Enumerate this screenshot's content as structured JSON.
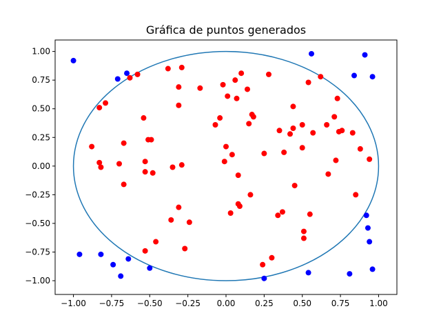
{
  "chart_data": {
    "type": "scatter",
    "title": "Gráfica de puntos generados",
    "xlabel": "",
    "ylabel": "",
    "xlim": [
      -1.12,
      1.12
    ],
    "ylim": [
      -1.12,
      1.1
    ],
    "grid": false,
    "x_ticks": [
      -1.0,
      -0.75,
      -0.5,
      -0.25,
      0.0,
      0.25,
      0.5,
      0.75,
      1.0
    ],
    "x_tick_labels": [
      "−1.00",
      "−0.75",
      "−0.50",
      "−0.25",
      "0.00",
      "0.25",
      "0.50",
      "0.75",
      "1.00"
    ],
    "y_ticks": [
      -1.0,
      -0.75,
      -0.5,
      -0.25,
      0.0,
      0.25,
      0.5,
      0.75,
      1.0
    ],
    "y_tick_labels": [
      "−1.00",
      "−0.75",
      "−0.50",
      "−0.25",
      "0.00",
      "0.25",
      "0.50",
      "0.75",
      "1.00"
    ],
    "circle": {
      "center": [
        0,
        0
      ],
      "radius": 1,
      "color": "#1f77b4"
    },
    "series": [
      {
        "color": "#ff0000",
        "points": [
          [
            -0.38,
            0.85
          ],
          [
            -0.29,
            0.86
          ],
          [
            -0.63,
            0.77
          ],
          [
            -0.58,
            0.8
          ],
          [
            -0.79,
            0.55
          ],
          [
            -0.83,
            0.51
          ],
          [
            -0.31,
            0.69
          ],
          [
            -0.31,
            0.53
          ],
          [
            -0.54,
            0.42
          ],
          [
            -0.17,
            0.68
          ],
          [
            -0.88,
            0.17
          ],
          [
            -0.67,
            0.2
          ],
          [
            -0.51,
            0.23
          ],
          [
            -0.49,
            0.23
          ],
          [
            -0.83,
            0.03
          ],
          [
            -0.82,
            -0.01
          ],
          [
            -0.7,
            0.02
          ],
          [
            -0.53,
            0.04
          ],
          [
            -0.35,
            -0.01
          ],
          [
            -0.29,
            0.01
          ],
          [
            -0.53,
            -0.05
          ],
          [
            -0.48,
            -0.06
          ],
          [
            -0.67,
            -0.16
          ],
          [
            -0.31,
            -0.36
          ],
          [
            -0.36,
            -0.47
          ],
          [
            -0.24,
            -0.49
          ],
          [
            -0.46,
            -0.66
          ],
          [
            -0.53,
            -0.74
          ],
          [
            -0.27,
            -0.72
          ],
          [
            -0.02,
            0.71
          ],
          [
            0.06,
            0.75
          ],
          [
            0.1,
            0.81
          ],
          [
            0.01,
            0.61
          ],
          [
            0.07,
            0.59
          ],
          [
            0.14,
            0.67
          ],
          [
            0.28,
            0.8
          ],
          [
            -0.04,
            0.42
          ],
          [
            -0.07,
            0.36
          ],
          [
            0.15,
            0.37
          ],
          [
            0.17,
            0.45
          ],
          [
            0.18,
            0.43
          ],
          [
            0.0,
            0.17
          ],
          [
            0.04,
            0.1
          ],
          [
            -0.01,
            0.04
          ],
          [
            0.08,
            -0.08
          ],
          [
            0.25,
            0.11
          ],
          [
            0.16,
            -0.25
          ],
          [
            0.03,
            -0.41
          ],
          [
            0.08,
            -0.33
          ],
          [
            0.09,
            -0.35
          ],
          [
            0.34,
            -0.43
          ],
          [
            0.37,
            -0.4
          ],
          [
            0.24,
            -0.86
          ],
          [
            0.3,
            -0.8
          ],
          [
            0.54,
            0.73
          ],
          [
            0.62,
            0.78
          ],
          [
            0.44,
            0.52
          ],
          [
            0.35,
            0.31
          ],
          [
            0.44,
            0.33
          ],
          [
            0.42,
            0.28
          ],
          [
            0.5,
            0.36
          ],
          [
            0.57,
            0.29
          ],
          [
            0.38,
            0.12
          ],
          [
            0.5,
            0.16
          ],
          [
            0.45,
            -0.17
          ],
          [
            0.55,
            -0.42
          ],
          [
            0.51,
            -0.57
          ],
          [
            0.51,
            -0.63
          ],
          [
            0.71,
            0.43
          ],
          [
            0.73,
            0.59
          ],
          [
            0.66,
            0.36
          ],
          [
            0.74,
            0.3
          ],
          [
            0.76,
            0.31
          ],
          [
            0.83,
            0.29
          ],
          [
            0.88,
            0.15
          ],
          [
            0.94,
            0.06
          ],
          [
            0.72,
            0.05
          ],
          [
            0.67,
            -0.07
          ],
          [
            0.85,
            -0.25
          ]
        ]
      },
      {
        "color": "#0000ff",
        "points": [
          [
            -1.0,
            0.92
          ],
          [
            -0.71,
            0.76
          ],
          [
            -0.65,
            0.81
          ],
          [
            0.56,
            0.98
          ],
          [
            0.91,
            0.97
          ],
          [
            0.84,
            0.79
          ],
          [
            0.96,
            0.78
          ],
          [
            0.92,
            -0.43
          ],
          [
            0.93,
            -0.54
          ],
          [
            0.94,
            -0.66
          ],
          [
            0.96,
            -0.9
          ],
          [
            0.81,
            -0.94
          ],
          [
            0.54,
            -0.93
          ],
          [
            0.25,
            -0.98
          ],
          [
            -0.5,
            -0.89
          ],
          [
            -0.64,
            -0.81
          ],
          [
            -0.69,
            -0.96
          ],
          [
            -0.74,
            -0.86
          ],
          [
            -0.82,
            -0.77
          ],
          [
            -0.96,
            -0.77
          ]
        ]
      }
    ]
  }
}
